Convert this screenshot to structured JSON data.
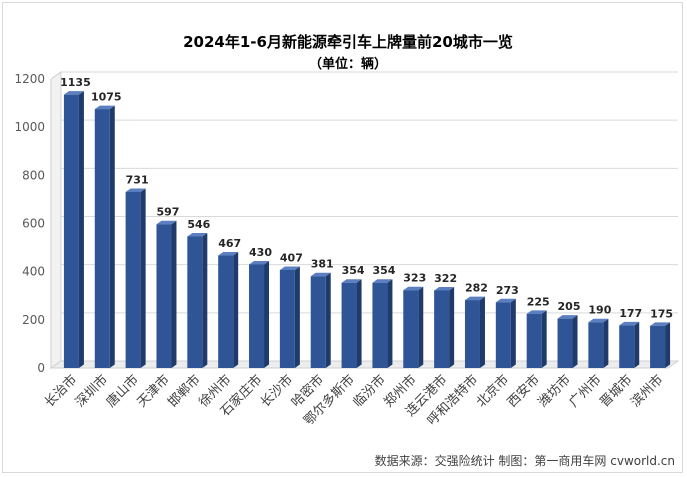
{
  "chart_data": {
    "type": "bar",
    "title": "2024年1-6月新能源牵引车上牌量前20城市一览",
    "subtitle": "（单位：辆）",
    "categories": [
      "长治市",
      "深圳市",
      "唐山市",
      "天津市",
      "邯郸市",
      "徐州市",
      "石家庄市",
      "长沙市",
      "哈密市",
      "鄂尔多斯市",
      "临汾市",
      "郑州市",
      "连云港市",
      "呼和浩特市",
      "北京市",
      "西安市",
      "潍坊市",
      "广州市",
      "晋城市",
      "滨州市"
    ],
    "values": [
      1135,
      1075,
      731,
      597,
      546,
      467,
      430,
      407,
      381,
      354,
      354,
      323,
      322,
      282,
      273,
      225,
      205,
      190,
      177,
      175
    ],
    "ylim": [
      0,
      1200
    ],
    "yticks": [
      0,
      200,
      400,
      600,
      800,
      1000,
      1200
    ],
    "grid": true,
    "legend": "none",
    "bar_color": "#2f5597",
    "bar_side_color": "#1f3b6b",
    "bar_top_color": "#5b7fc0"
  },
  "source_note": "数据来源：交强险统计  制图：第一商用车网 cvworld.cn"
}
